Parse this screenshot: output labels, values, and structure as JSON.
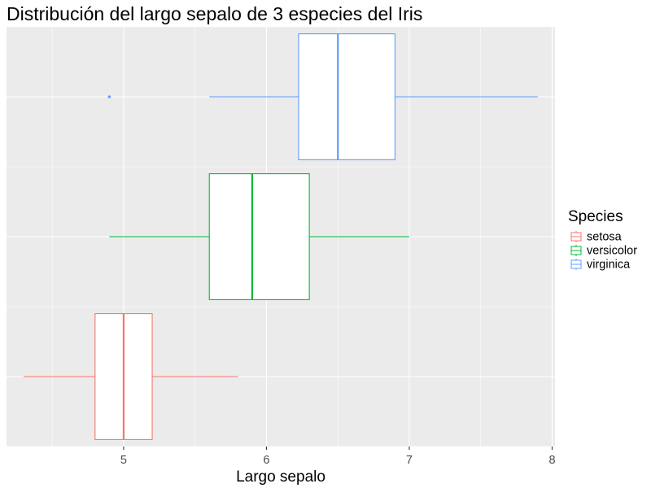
{
  "chart_data": {
    "type": "boxplot",
    "title": "Distribución del largo sepalo de 3 especies del Iris",
    "xlabel": "Largo sepalo",
    "ylabel": "",
    "xlim": [
      4.18,
      8.02
    ],
    "x_ticks": [
      5,
      6,
      7,
      8
    ],
    "x_tick_labels": [
      "5",
      "6",
      "7",
      "8"
    ],
    "orientation": "horizontal",
    "grid": true,
    "y_tick_labels_visible": false,
    "legend": {
      "title": "Species",
      "position": "right"
    },
    "panel_background": "#EBEBEB",
    "series": [
      {
        "name": "setosa",
        "color": "#F8766D",
        "min": 4.3,
        "q1": 4.8,
        "median": 5.0,
        "q3": 5.2,
        "max": 5.8,
        "outliers": []
      },
      {
        "name": "versicolor",
        "color": "#00BA38",
        "min": 4.9,
        "q1": 5.6,
        "median": 5.9,
        "q3": 6.3,
        "max": 7.0,
        "outliers": []
      },
      {
        "name": "virginica",
        "color": "#619CFF",
        "min": 5.6,
        "q1": 6.225,
        "median": 6.5,
        "q3": 6.9,
        "max": 7.9,
        "outliers": [
          4.9
        ]
      }
    ]
  }
}
